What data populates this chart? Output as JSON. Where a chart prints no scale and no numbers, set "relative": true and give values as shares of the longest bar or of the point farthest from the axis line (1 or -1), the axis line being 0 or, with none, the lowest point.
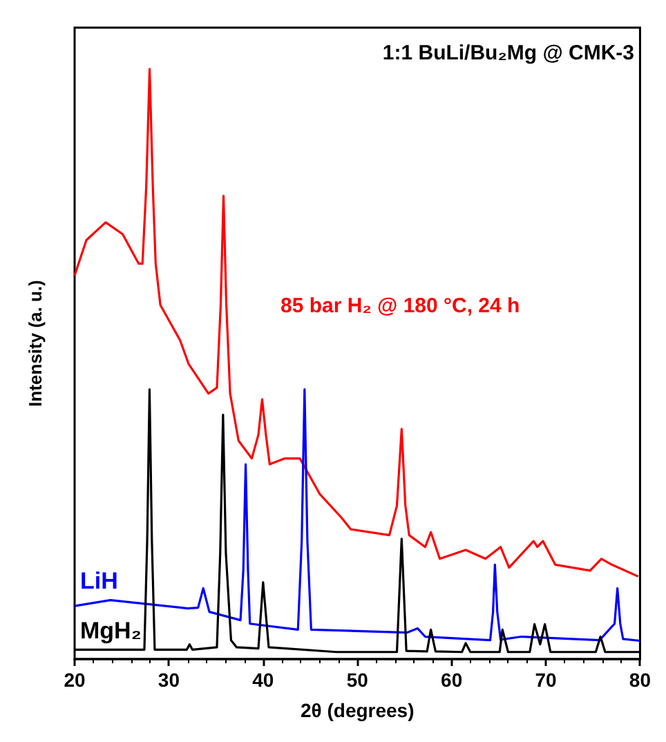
{
  "chart_data": {
    "type": "line",
    "title": "1:1 BuLi/Bu₂Mg @ CMK-3",
    "xlabel": "2θ (degrees)",
    "ylabel": "Intensity (a. u.)",
    "relative": true,
    "xlim": [
      20,
      80
    ],
    "xticks": [
      20,
      30,
      40,
      50,
      60,
      70,
      80
    ],
    "grid": false,
    "marker": "none",
    "line_style": "solid",
    "series": [
      {
        "name": "85 bar H₂ @ 180 °C, 24 h",
        "color": "#ff0000",
        "x": [
          20,
          21.25,
          23.3,
          25.1,
          26.8,
          27.2,
          27.6,
          27.96,
          28.3,
          28.6,
          29.1,
          31.2,
          32.1,
          34.2,
          35.1,
          35.5,
          35.8,
          36.1,
          36.5,
          37.4,
          38.8,
          39.5,
          39.9,
          40.3,
          40.7,
          42.3,
          43.9,
          46,
          48.3,
          49.3,
          53.4,
          54.2,
          54.7,
          55.1,
          55.5,
          57.2,
          57.8,
          58.75,
          61.5,
          63.6,
          65.2,
          66.1,
          68.7,
          69.1,
          69.7,
          71,
          74.7,
          75.9,
          77,
          79.8
        ],
        "values": [
          0.65,
          0.71,
          0.74,
          0.72,
          0.67,
          0.67,
          0.8,
          1.0,
          0.8,
          0.67,
          0.6,
          0.54,
          0.5,
          0.45,
          0.46,
          0.6,
          0.785,
          0.6,
          0.45,
          0.37,
          0.34,
          0.38,
          0.44,
          0.38,
          0.33,
          0.34,
          0.34,
          0.28,
          0.24,
          0.22,
          0.21,
          0.26,
          0.39,
          0.26,
          0.21,
          0.19,
          0.215,
          0.17,
          0.185,
          0.17,
          0.19,
          0.155,
          0.2,
          0.19,
          0.2,
          0.16,
          0.15,
          0.17,
          0.16,
          0.14
        ]
      },
      {
        "name": "LiH",
        "color": "#0000ff",
        "x": [
          20,
          23.8,
          32,
          33.1,
          33.65,
          34.3,
          37.6,
          37.9,
          38.15,
          38.4,
          38.6,
          43.7,
          44.1,
          44.4,
          44.7,
          45.1,
          55.3,
          56.4,
          57.2,
          64.1,
          64.4,
          64.6,
          64.85,
          65.2,
          67.4,
          75.7,
          77.3,
          77.6,
          77.9,
          78.2,
          80
        ],
        "values": [
          0.09,
          0.1,
          0.086,
          0.087,
          0.12,
          0.08,
          0.066,
          0.15,
          0.33,
          0.15,
          0.06,
          0.05,
          0.2,
          0.457,
          0.2,
          0.05,
          0.045,
          0.052,
          0.038,
          0.032,
          0.08,
          0.16,
          0.08,
          0.033,
          0.038,
          0.032,
          0.06,
          0.12,
          0.06,
          0.034,
          0.031
        ]
      },
      {
        "name": "MgH₂",
        "color": "#000000",
        "x": [
          20,
          27.4,
          27.7,
          27.95,
          28.2,
          28.5,
          31.9,
          32.2,
          32.5,
          35.1,
          35.45,
          35.75,
          36.05,
          36.6,
          37.2,
          39.5,
          40,
          40.6,
          47.8,
          54.2,
          54.7,
          55.2,
          57.4,
          57.8,
          58.3,
          61.1,
          61.5,
          62,
          65.1,
          65.4,
          66,
          68.3,
          68.8,
          69.4,
          69.9,
          70.5,
          75.3,
          75.8,
          76.3,
          80
        ],
        "values": [
          0.016,
          0.016,
          0.2,
          0.457,
          0.2,
          0.016,
          0.016,
          0.025,
          0.016,
          0.02,
          0.18,
          0.414,
          0.18,
          0.032,
          0.02,
          0.018,
          0.13,
          0.02,
          0.012,
          0.012,
          0.204,
          0.014,
          0.013,
          0.05,
          0.013,
          0.012,
          0.027,
          0.012,
          0.012,
          0.05,
          0.012,
          0.012,
          0.059,
          0.025,
          0.059,
          0.012,
          0.012,
          0.038,
          0.012,
          0.012
        ]
      }
    ]
  }
}
